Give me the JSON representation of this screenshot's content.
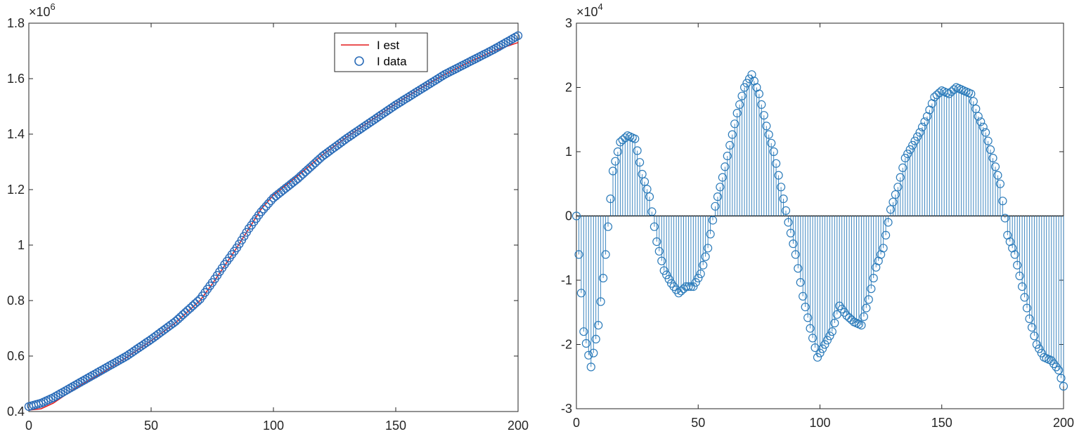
{
  "chart_data": [
    {
      "type": "line",
      "exponent_label": {
        "base": "×10",
        "power": "6"
      },
      "title": "",
      "xlabel": "",
      "ylabel": "",
      "xlim": [
        0,
        200
      ],
      "ylim": [
        0.4,
        1.8
      ],
      "y_scale_factor": 1000000,
      "xticks": [
        0,
        50,
        100,
        150,
        200
      ],
      "yticks": [
        0.4,
        0.6,
        0.8,
        1,
        1.2,
        1.4,
        1.6,
        1.8
      ],
      "xtick_labels": [
        "0",
        "50",
        "100",
        "150",
        "200"
      ],
      "ytick_labels": [
        "0.4",
        "0.6",
        "0.8",
        "1",
        "1.2",
        "1.4",
        "1.6",
        "1.8"
      ],
      "grid": false,
      "legend": {
        "position": "top-right"
      },
      "series": [
        {
          "name": "I est",
          "style": "line",
          "color": "#e31a1c",
          "x": [
            0,
            5,
            10,
            20,
            30,
            40,
            50,
            60,
            70,
            75,
            80,
            85,
            90,
            95,
            100,
            110,
            120,
            130,
            140,
            150,
            160,
            170,
            180,
            190,
            200
          ],
          "y": [
            0.405,
            0.41,
            0.43,
            0.49,
            0.54,
            0.595,
            0.655,
            0.72,
            0.8,
            0.86,
            0.925,
            0.99,
            1.06,
            1.13,
            1.18,
            1.25,
            1.325,
            1.39,
            1.45,
            1.51,
            1.565,
            1.615,
            1.66,
            1.7,
            1.73
          ]
        },
        {
          "name": "I data",
          "style": "markers",
          "color": "#2b6cb8",
          "x": [
            0,
            5,
            10,
            20,
            30,
            40,
            50,
            60,
            70,
            75,
            80,
            85,
            90,
            95,
            100,
            110,
            120,
            130,
            140,
            150,
            160,
            170,
            180,
            190,
            200
          ],
          "y": [
            0.418,
            0.43,
            0.45,
            0.5,
            0.55,
            0.6,
            0.66,
            0.725,
            0.805,
            0.865,
            0.93,
            0.99,
            1.06,
            1.12,
            1.17,
            1.24,
            1.32,
            1.385,
            1.445,
            1.505,
            1.56,
            1.615,
            1.66,
            1.705,
            1.755
          ]
        }
      ]
    },
    {
      "type": "stem",
      "exponent_label": {
        "base": "×10",
        "power": "4"
      },
      "title": "",
      "xlabel": "",
      "ylabel": "",
      "xlim": [
        0,
        200
      ],
      "ylim": [
        -3,
        3
      ],
      "y_scale_factor": 10000,
      "xticks": [
        0,
        50,
        100,
        150,
        200
      ],
      "yticks": [
        -3,
        -2,
        -1,
        0,
        1,
        2,
        3
      ],
      "xtick_labels": [
        "0",
        "50",
        "100",
        "150",
        "200"
      ],
      "ytick_labels": [
        "-3",
        "-2",
        "-1",
        "0",
        "1",
        "2",
        "3"
      ],
      "grid": false,
      "series": [
        {
          "name": "",
          "color": "#2b7bba",
          "x": [
            0,
            3,
            6,
            9,
            12,
            15,
            18,
            21,
            24,
            27,
            30,
            33,
            36,
            39,
            42,
            45,
            48,
            51,
            54,
            57,
            60,
            63,
            66,
            69,
            72,
            75,
            78,
            81,
            84,
            87,
            90,
            93,
            96,
            99,
            102,
            105,
            108,
            111,
            114,
            117,
            120,
            123,
            126,
            129,
            132,
            135,
            138,
            141,
            144,
            147,
            150,
            153,
            156,
            159,
            162,
            165,
            168,
            171,
            174,
            177,
            180,
            183,
            186,
            189,
            192,
            195,
            198,
            200
          ],
          "y": [
            0,
            -1.8,
            -2.35,
            -1.7,
            -0.6,
            0.7,
            1.15,
            1.25,
            1.2,
            0.65,
            0.3,
            -0.4,
            -0.85,
            -1.05,
            -1.2,
            -1.1,
            -1.1,
            -0.9,
            -0.5,
            0.15,
            0.6,
            1.1,
            1.6,
            2.0,
            2.2,
            1.9,
            1.4,
            1.0,
            0.45,
            -0.1,
            -0.6,
            -1.25,
            -1.75,
            -2.2,
            -2.0,
            -1.8,
            -1.4,
            -1.55,
            -1.65,
            -1.7,
            -1.3,
            -0.8,
            -0.5,
            0.1,
            0.45,
            0.9,
            1.1,
            1.3,
            1.55,
            1.85,
            1.95,
            1.9,
            2.0,
            1.95,
            1.9,
            1.55,
            1.3,
            0.9,
            0.5,
            -0.3,
            -0.6,
            -1.1,
            -1.6,
            -2.0,
            -2.2,
            -2.25,
            -2.4,
            -2.65
          ]
        }
      ]
    }
  ]
}
